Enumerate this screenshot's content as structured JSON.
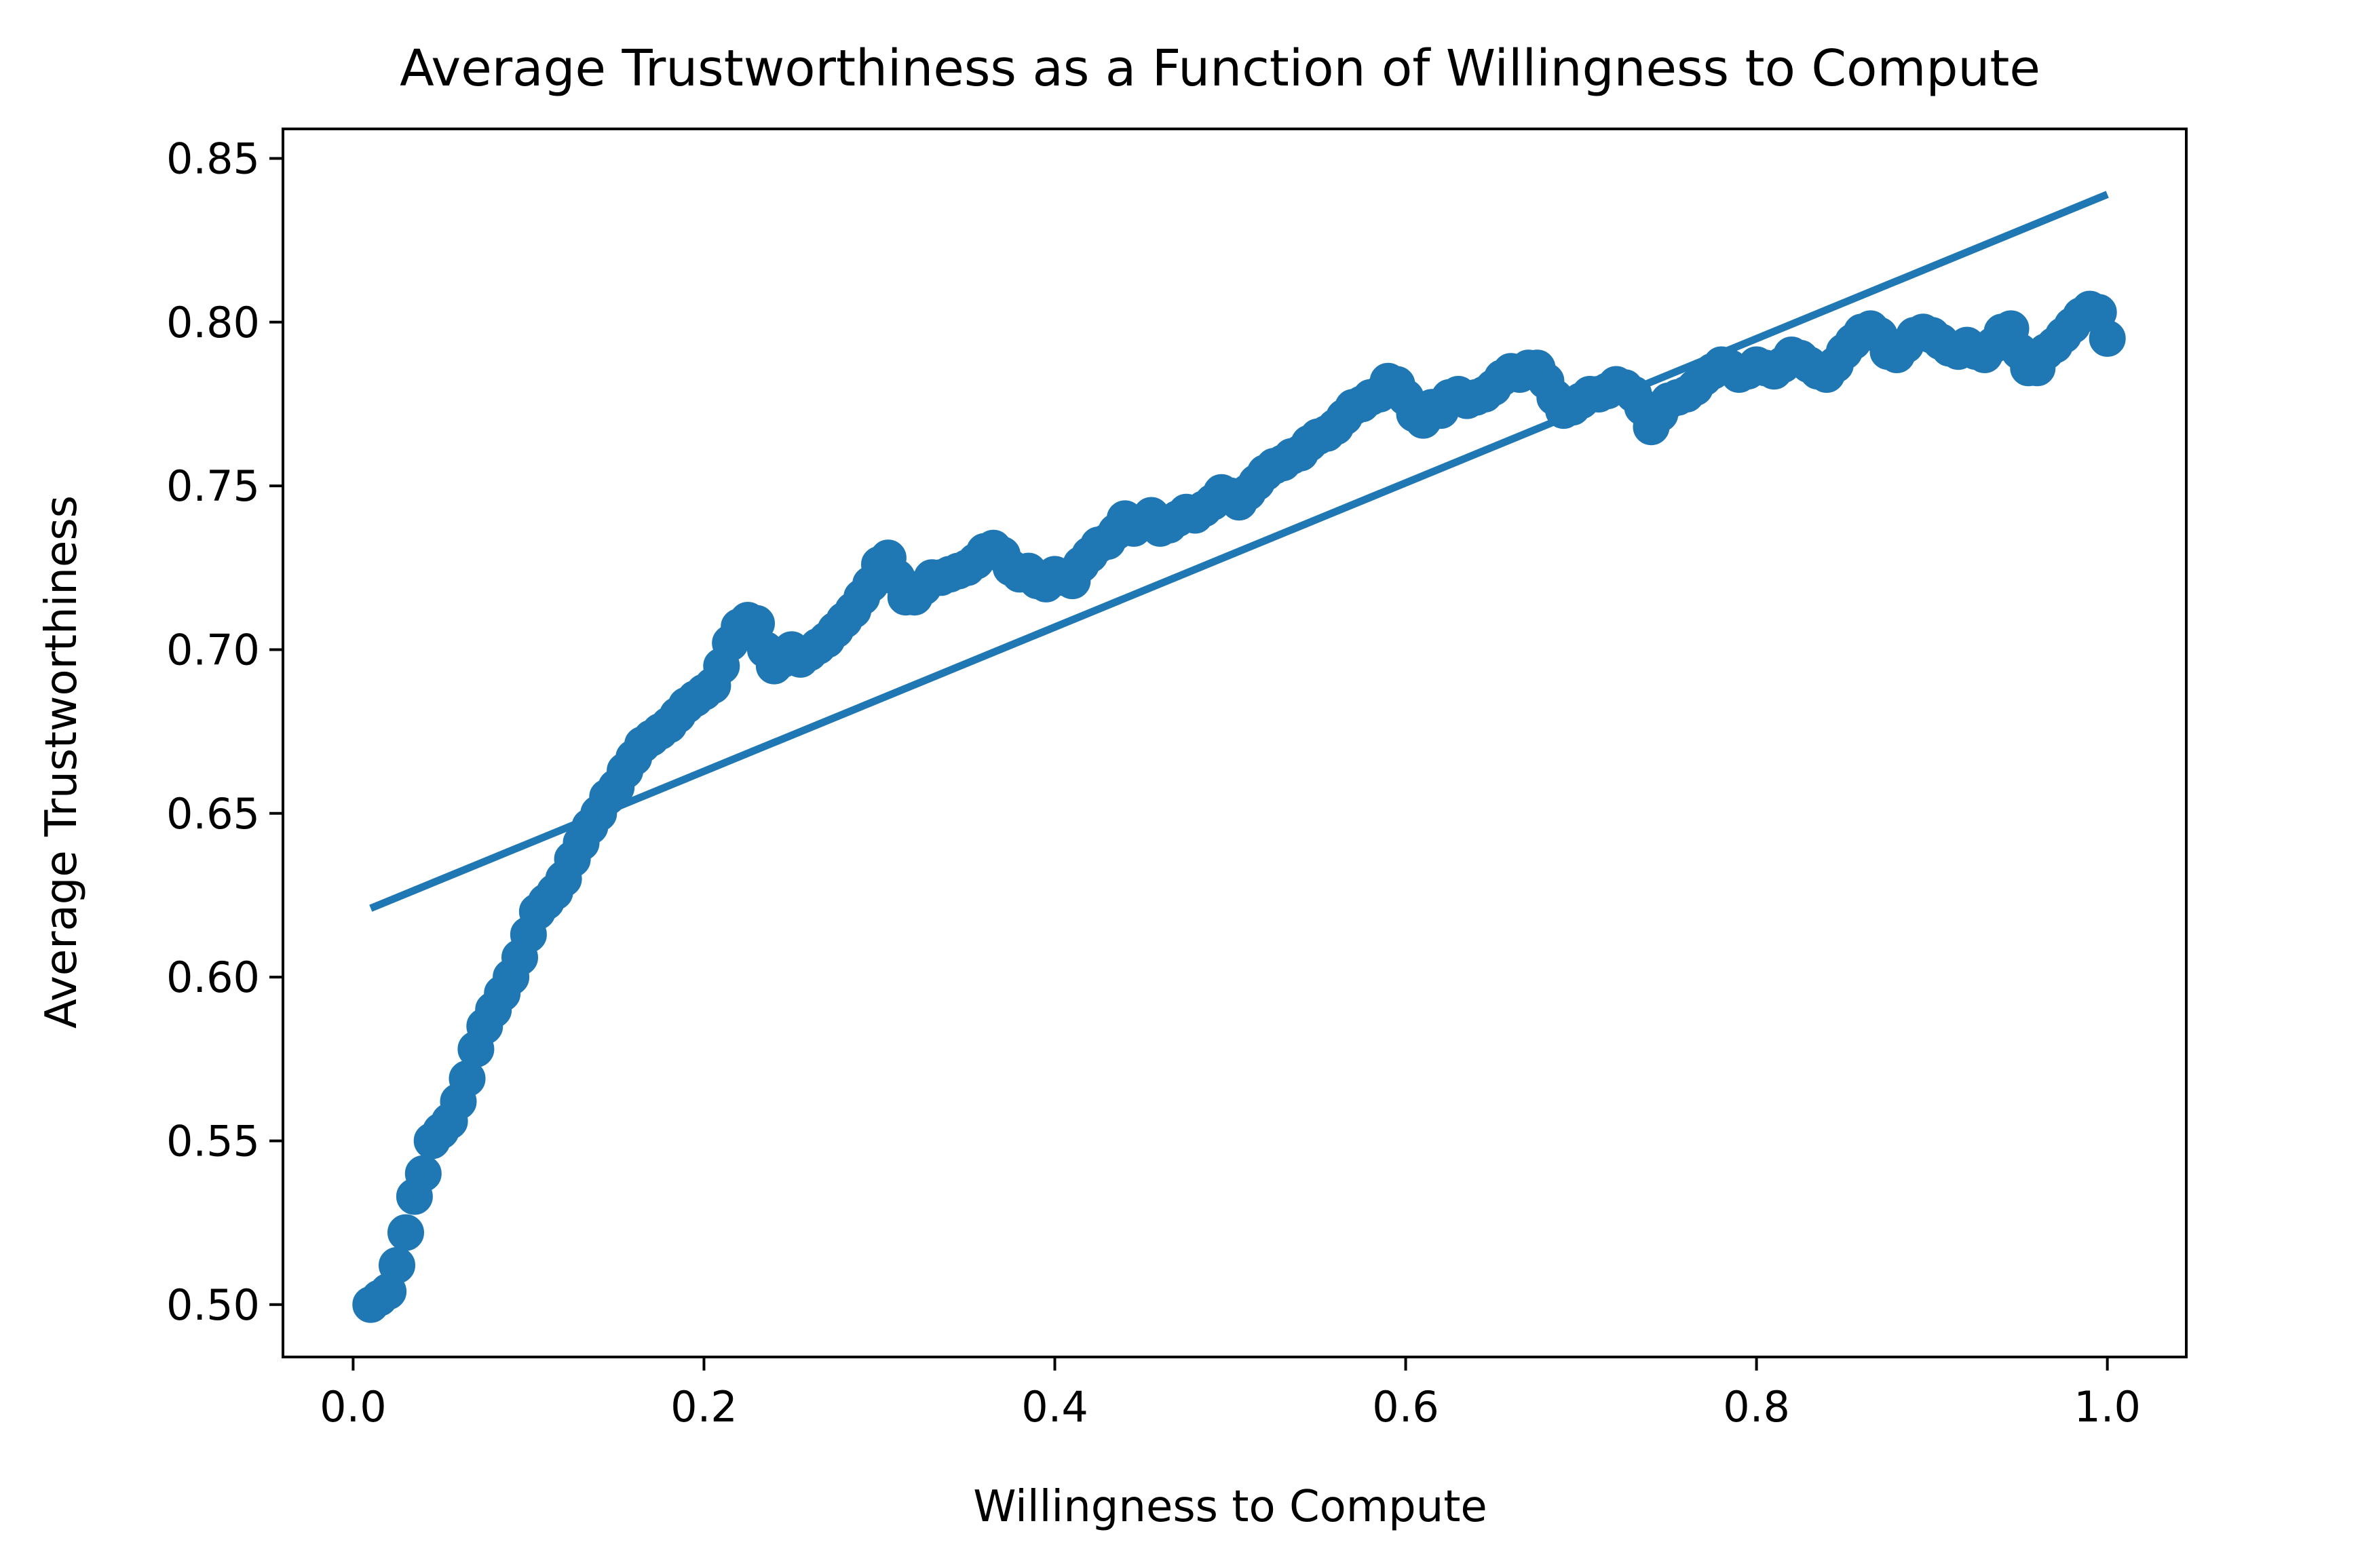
{
  "chart_data": {
    "type": "scatter",
    "title": "Average Trustworthiness as a Function of Willingness to Compute",
    "xlabel": "Willingness to Compute",
    "ylabel": "Average Trustworthiness",
    "xlim": [
      -0.04,
      1.045
    ],
    "ylim": [
      0.484,
      0.859
    ],
    "xticks": [
      0.0,
      0.2,
      0.4,
      0.6,
      0.8,
      1.0
    ],
    "xtick_labels": [
      "0.0",
      "0.2",
      "0.4",
      "0.6",
      "0.8",
      "1.0"
    ],
    "yticks": [
      0.5,
      0.55,
      0.6,
      0.65,
      0.7,
      0.75,
      0.8,
      0.85
    ],
    "ytick_labels": [
      "0.50",
      "0.55",
      "0.60",
      "0.65",
      "0.70",
      "0.75",
      "0.80",
      "0.85"
    ],
    "grid": false,
    "color": "#1f77b4",
    "series": [
      {
        "kind": "scatter",
        "points": [
          [
            0.01,
            0.5
          ],
          [
            0.015,
            0.502
          ],
          [
            0.02,
            0.504
          ],
          [
            0.025,
            0.512
          ],
          [
            0.03,
            0.522
          ],
          [
            0.035,
            0.533
          ],
          [
            0.04,
            0.54
          ],
          [
            0.045,
            0.55
          ],
          [
            0.05,
            0.553
          ],
          [
            0.055,
            0.556
          ],
          [
            0.06,
            0.562
          ],
          [
            0.065,
            0.569
          ],
          [
            0.07,
            0.578
          ],
          [
            0.075,
            0.585
          ],
          [
            0.08,
            0.59
          ],
          [
            0.085,
            0.595
          ],
          [
            0.09,
            0.6
          ],
          [
            0.095,
            0.606
          ],
          [
            0.1,
            0.613
          ],
          [
            0.105,
            0.62
          ],
          [
            0.11,
            0.623
          ],
          [
            0.115,
            0.626
          ],
          [
            0.12,
            0.63
          ],
          [
            0.125,
            0.636
          ],
          [
            0.13,
            0.641
          ],
          [
            0.135,
            0.646
          ],
          [
            0.14,
            0.65
          ],
          [
            0.145,
            0.655
          ],
          [
            0.15,
            0.658
          ],
          [
            0.155,
            0.663
          ],
          [
            0.16,
            0.667
          ],
          [
            0.165,
            0.671
          ],
          [
            0.17,
            0.673
          ],
          [
            0.175,
            0.675
          ],
          [
            0.18,
            0.677
          ],
          [
            0.185,
            0.68
          ],
          [
            0.19,
            0.683
          ],
          [
            0.195,
            0.685
          ],
          [
            0.2,
            0.687
          ],
          [
            0.205,
            0.689
          ],
          [
            0.21,
            0.695
          ],
          [
            0.215,
            0.702
          ],
          [
            0.22,
            0.707
          ],
          [
            0.225,
            0.709
          ],
          [
            0.23,
            0.708
          ],
          [
            0.235,
            0.7
          ],
          [
            0.24,
            0.695
          ],
          [
            0.245,
            0.697
          ],
          [
            0.25,
            0.7
          ],
          [
            0.255,
            0.697
          ],
          [
            0.26,
            0.699
          ],
          [
            0.265,
            0.701
          ],
          [
            0.27,
            0.703
          ],
          [
            0.275,
            0.706
          ],
          [
            0.28,
            0.709
          ],
          [
            0.285,
            0.712
          ],
          [
            0.29,
            0.716
          ],
          [
            0.295,
            0.72
          ],
          [
            0.3,
            0.726
          ],
          [
            0.305,
            0.728
          ],
          [
            0.31,
            0.722
          ],
          [
            0.315,
            0.716
          ],
          [
            0.32,
            0.716
          ],
          [
            0.325,
            0.719
          ],
          [
            0.33,
            0.722
          ],
          [
            0.335,
            0.722
          ],
          [
            0.34,
            0.723
          ],
          [
            0.345,
            0.724
          ],
          [
            0.35,
            0.725
          ],
          [
            0.355,
            0.727
          ],
          [
            0.36,
            0.73
          ],
          [
            0.365,
            0.731
          ],
          [
            0.37,
            0.729
          ],
          [
            0.375,
            0.725
          ],
          [
            0.38,
            0.723
          ],
          [
            0.385,
            0.724
          ],
          [
            0.39,
            0.721
          ],
          [
            0.395,
            0.72
          ],
          [
            0.4,
            0.723
          ],
          [
            0.405,
            0.722
          ],
          [
            0.41,
            0.721
          ],
          [
            0.415,
            0.726
          ],
          [
            0.42,
            0.729
          ],
          [
            0.425,
            0.732
          ],
          [
            0.43,
            0.733
          ],
          [
            0.435,
            0.736
          ],
          [
            0.44,
            0.74
          ],
          [
            0.445,
            0.737
          ],
          [
            0.45,
            0.739
          ],
          [
            0.455,
            0.741
          ],
          [
            0.46,
            0.737
          ],
          [
            0.465,
            0.738
          ],
          [
            0.47,
            0.74
          ],
          [
            0.475,
            0.742
          ],
          [
            0.48,
            0.741
          ],
          [
            0.485,
            0.743
          ],
          [
            0.49,
            0.745
          ],
          [
            0.495,
            0.748
          ],
          [
            0.5,
            0.747
          ],
          [
            0.505,
            0.745
          ],
          [
            0.51,
            0.748
          ],
          [
            0.515,
            0.751
          ],
          [
            0.52,
            0.754
          ],
          [
            0.525,
            0.756
          ],
          [
            0.53,
            0.757
          ],
          [
            0.535,
            0.759
          ],
          [
            0.54,
            0.76
          ],
          [
            0.545,
            0.763
          ],
          [
            0.55,
            0.765
          ],
          [
            0.555,
            0.766
          ],
          [
            0.56,
            0.768
          ],
          [
            0.565,
            0.771
          ],
          [
            0.57,
            0.774
          ],
          [
            0.575,
            0.775
          ],
          [
            0.58,
            0.777
          ],
          [
            0.585,
            0.778
          ],
          [
            0.59,
            0.782
          ],
          [
            0.595,
            0.781
          ],
          [
            0.6,
            0.777
          ],
          [
            0.605,
            0.772
          ],
          [
            0.61,
            0.77
          ],
          [
            0.615,
            0.774
          ],
          [
            0.62,
            0.773
          ],
          [
            0.625,
            0.777
          ],
          [
            0.63,
            0.778
          ],
          [
            0.635,
            0.776
          ],
          [
            0.64,
            0.777
          ],
          [
            0.645,
            0.778
          ],
          [
            0.65,
            0.78
          ],
          [
            0.655,
            0.783
          ],
          [
            0.66,
            0.785
          ],
          [
            0.665,
            0.784
          ],
          [
            0.67,
            0.786
          ],
          [
            0.675,
            0.786
          ],
          [
            0.68,
            0.782
          ],
          [
            0.685,
            0.777
          ],
          [
            0.69,
            0.773
          ],
          [
            0.695,
            0.774
          ],
          [
            0.7,
            0.776
          ],
          [
            0.705,
            0.778
          ],
          [
            0.71,
            0.778
          ],
          [
            0.715,
            0.779
          ],
          [
            0.72,
            0.781
          ],
          [
            0.725,
            0.78
          ],
          [
            0.73,
            0.778
          ],
          [
            0.735,
            0.774
          ],
          [
            0.74,
            0.768
          ],
          [
            0.745,
            0.772
          ],
          [
            0.75,
            0.776
          ],
          [
            0.755,
            0.777
          ],
          [
            0.76,
            0.778
          ],
          [
            0.765,
            0.78
          ],
          [
            0.77,
            0.783
          ],
          [
            0.775,
            0.785
          ],
          [
            0.78,
            0.787
          ],
          [
            0.785,
            0.786
          ],
          [
            0.79,
            0.784
          ],
          [
            0.795,
            0.785
          ],
          [
            0.8,
            0.787
          ],
          [
            0.805,
            0.786
          ],
          [
            0.81,
            0.785
          ],
          [
            0.815,
            0.787
          ],
          [
            0.82,
            0.79
          ],
          [
            0.825,
            0.789
          ],
          [
            0.83,
            0.787
          ],
          [
            0.835,
            0.785
          ],
          [
            0.84,
            0.784
          ],
          [
            0.845,
            0.787
          ],
          [
            0.85,
            0.791
          ],
          [
            0.855,
            0.794
          ],
          [
            0.86,
            0.797
          ],
          [
            0.865,
            0.798
          ],
          [
            0.87,
            0.796
          ],
          [
            0.875,
            0.791
          ],
          [
            0.88,
            0.79
          ],
          [
            0.885,
            0.793
          ],
          [
            0.89,
            0.796
          ],
          [
            0.895,
            0.797
          ],
          [
            0.9,
            0.796
          ],
          [
            0.905,
            0.794
          ],
          [
            0.91,
            0.792
          ],
          [
            0.915,
            0.791
          ],
          [
            0.92,
            0.793
          ],
          [
            0.925,
            0.791
          ],
          [
            0.93,
            0.79
          ],
          [
            0.935,
            0.793
          ],
          [
            0.94,
            0.797
          ],
          [
            0.945,
            0.798
          ],
          [
            0.95,
            0.791
          ],
          [
            0.955,
            0.786
          ],
          [
            0.96,
            0.786
          ],
          [
            0.965,
            0.791
          ],
          [
            0.97,
            0.793
          ],
          [
            0.975,
            0.796
          ],
          [
            0.98,
            0.799
          ],
          [
            0.985,
            0.802
          ],
          [
            0.99,
            0.804
          ],
          [
            0.995,
            0.803
          ],
          [
            1.0,
            0.795
          ]
        ]
      },
      {
        "kind": "line",
        "x": [
          0.01,
          1.0
        ],
        "y": [
          0.621,
          0.839
        ]
      }
    ]
  }
}
